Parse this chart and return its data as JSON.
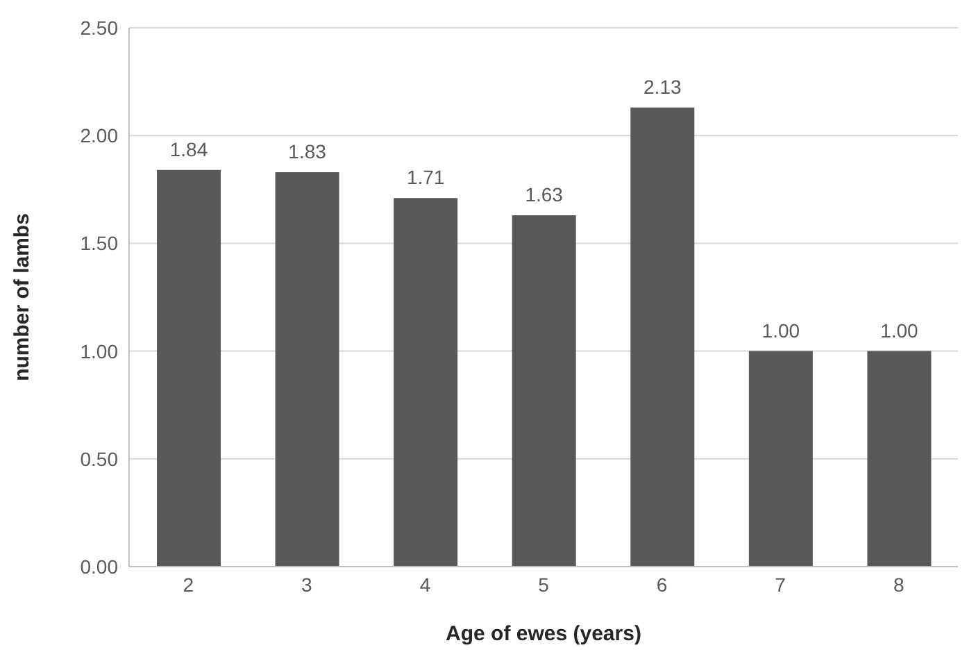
{
  "chart_data": {
    "type": "bar",
    "xlabel": "Age of ewes (years)",
    "ylabel": "number of lambs",
    "categories": [
      "2",
      "3",
      "4",
      "5",
      "6",
      "7",
      "8"
    ],
    "values": [
      1.84,
      1.83,
      1.71,
      1.63,
      2.13,
      1.0,
      1.0
    ],
    "value_labels": [
      "1.84",
      "1.83",
      "1.71",
      "1.63",
      "2.13",
      "1.00",
      "1.00"
    ],
    "color": "#595959",
    "ylim": [
      0,
      2.5
    ],
    "yticks": [
      {
        "value": 0,
        "label": "0.00"
      },
      {
        "value": 0.5,
        "label": "0.50"
      },
      {
        "value": 1,
        "label": "1.00"
      },
      {
        "value": 1.5,
        "label": "1.50"
      },
      {
        "value": 2,
        "label": "2.00"
      },
      {
        "value": 2.5,
        "label": "2.50"
      }
    ],
    "grid": "y"
  }
}
